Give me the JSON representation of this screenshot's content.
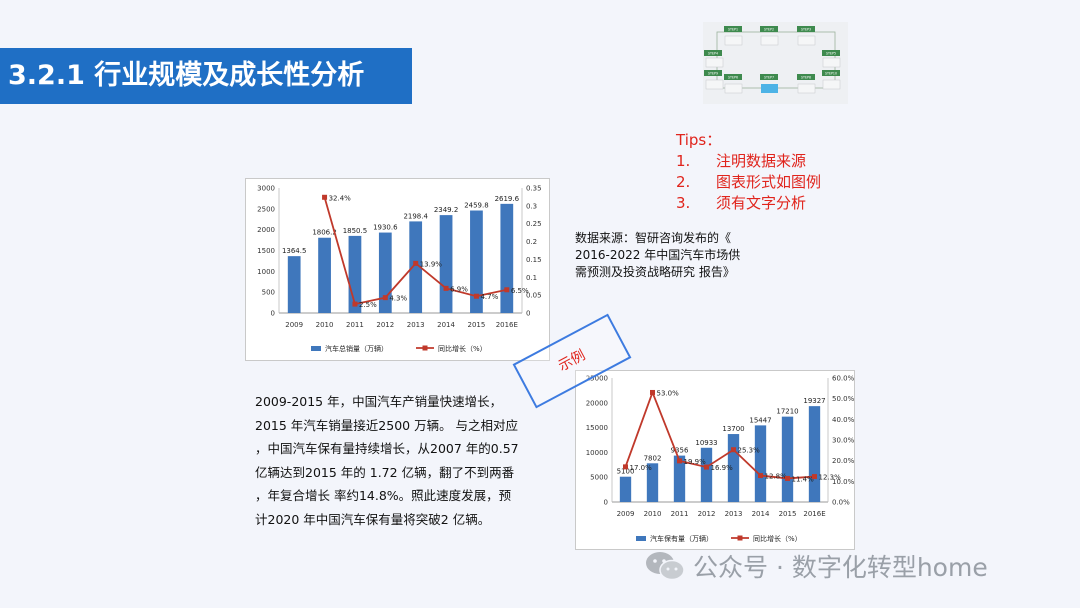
{
  "slide": {
    "title": "3.2.1 行业规模及成长性分析",
    "tips": {
      "heading": "Tips：",
      "items": [
        {
          "num": "1.",
          "text": "注明数据来源"
        },
        {
          "num": "2.",
          "text": "图表形式如图例"
        },
        {
          "num": "3.",
          "text": "须有文字分析"
        }
      ]
    },
    "source_lines": [
      "数据来源：智研咨询发布的《",
      "2016-2022 年中国汽车市场供",
      "需预测及投资战略研究 报告》"
    ],
    "analysis_lines": [
      "2009-2015 年，中国汽车产销量快速增长，",
      "2015 年汽车销量接近2500 万辆。 与之相对应",
      "，中国汽车保有量持续增长，从2007 年的0.57",
      "亿辆达到2015 年的 1.72 亿辆，翻了不到两番",
      "，年复合增长 率约14.8%。照此速度发展，预",
      "计2020 年中国汽车保有量将突破2 亿辆。"
    ],
    "stamp_label": "示例",
    "watermark": "公众号 · 数字化转型home",
    "flow_steps": [
      "STEP1",
      "STEP2",
      "STEP3",
      "STEP4",
      "STEP5",
      "STEP6",
      "STEP7",
      "STEP8",
      "STEP9",
      "STEP10"
    ]
  },
  "colors": {
    "title_bg": "#1f6fc5",
    "bar": "#3f77bc",
    "line": "#c0392b",
    "tips": "#e0241c",
    "stamp_border": "#3d7be0"
  },
  "chart_data": [
    {
      "type": "bar",
      "categories": [
        "2009",
        "2010",
        "2011",
        "2012",
        "2013",
        "2014",
        "2015",
        "2016E"
      ],
      "series": [
        {
          "name": "汽车总销量（万辆）",
          "type": "bar",
          "axis": "left",
          "values": [
            1364.5,
            1806.2,
            1850.5,
            1930.6,
            2198.4,
            2349.2,
            2459.8,
            2619.6
          ],
          "labels": [
            "1364.5",
            "1806.2",
            "1850.5",
            "1930.6",
            "2198.4",
            "2349.2",
            "2459.8",
            "2619.6"
          ]
        },
        {
          "name": "同比增长（%）",
          "type": "line",
          "axis": "right",
          "values": [
            null,
            0.324,
            0.025,
            0.043,
            0.139,
            0.069,
            0.047,
            0.065
          ],
          "labels": [
            "",
            "32.4%",
            "2.5%",
            "4.3%",
            "13.9%",
            "6.9%",
            "4.7%",
            "6.5%"
          ]
        }
      ],
      "ylim": [
        0,
        3000
      ],
      "y2lim": [
        0,
        0.35
      ],
      "yticks": [
        "0",
        "500",
        "1000",
        "1500",
        "2000",
        "2500",
        "3000"
      ],
      "y2ticks": [
        "0",
        "0.05",
        "0.1",
        "0.15",
        "0.2",
        "0.25",
        "0.3",
        "0.35"
      ],
      "legend": "bottom"
    },
    {
      "type": "bar",
      "categories": [
        "2009",
        "2010",
        "2011",
        "2012",
        "2013",
        "2014",
        "2015",
        "2016E"
      ],
      "series": [
        {
          "name": "汽车保有量（万辆）",
          "type": "bar",
          "axis": "left",
          "values": [
            5100,
            7802,
            9356,
            10933,
            13700,
            15447,
            17210,
            19327
          ],
          "labels": [
            "5100",
            "7802",
            "9356",
            "10933",
            "13700",
            "15447",
            "17210",
            "19327"
          ]
        },
        {
          "name": "同比增长（%）",
          "type": "line",
          "axis": "right",
          "values": [
            17.0,
            53.0,
            19.9,
            16.9,
            25.3,
            12.8,
            11.4,
            12.3
          ],
          "labels": [
            "17.0%",
            "53.0%",
            "19.9%",
            "16.9%",
            "25.3%",
            "12.8%",
            "11.4%",
            "12.3%"
          ]
        }
      ],
      "ylim": [
        0,
        25000
      ],
      "y2lim": [
        0,
        60
      ],
      "yticks": [
        "0",
        "5000",
        "10000",
        "15000",
        "20000",
        "25000"
      ],
      "y2ticks": [
        "0.0%",
        "10.0%",
        "20.0%",
        "30.0%",
        "40.0%",
        "50.0%",
        "60.0%"
      ],
      "legend": "bottom"
    }
  ]
}
